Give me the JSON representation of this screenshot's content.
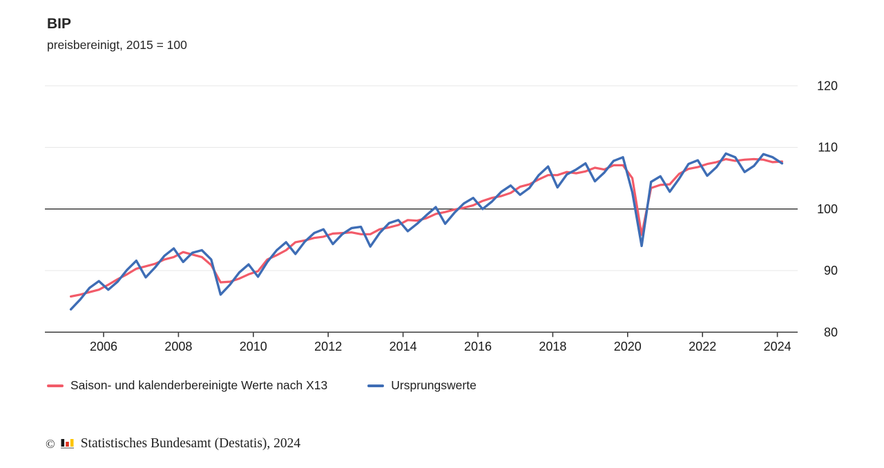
{
  "header": {
    "title": "BIP",
    "subtitle": "preisbereinigt, 2015 = 100"
  },
  "chart_data": {
    "type": "line",
    "title": "BIP",
    "subtitle": "preisbereinigt, 2015 = 100",
    "frequency": "quarterly",
    "baseline_value": 100,
    "yticks": [
      80,
      90,
      100,
      110,
      120
    ],
    "xticks": [
      2006,
      2008,
      2010,
      2012,
      2014,
      2016,
      2018,
      2020,
      2022,
      2024
    ],
    "ylim": [
      78.5,
      121.5
    ],
    "grid": "horizontal-only",
    "legend_position": "bottom-left",
    "style": {
      "grid_color": "#e7e7e7",
      "axis_color": "#3c3c3c",
      "label_color": "#1a1a1a"
    },
    "quarters": [
      "2005-Q1",
      "2005-Q2",
      "2005-Q3",
      "2005-Q4",
      "2006-Q1",
      "2006-Q2",
      "2006-Q3",
      "2006-Q4",
      "2007-Q1",
      "2007-Q2",
      "2007-Q3",
      "2007-Q4",
      "2008-Q1",
      "2008-Q2",
      "2008-Q3",
      "2008-Q4",
      "2009-Q1",
      "2009-Q2",
      "2009-Q3",
      "2009-Q4",
      "2010-Q1",
      "2010-Q2",
      "2010-Q3",
      "2010-Q4",
      "2011-Q1",
      "2011-Q2",
      "2011-Q3",
      "2011-Q4",
      "2012-Q1",
      "2012-Q2",
      "2012-Q3",
      "2012-Q4",
      "2013-Q1",
      "2013-Q2",
      "2013-Q3",
      "2013-Q4",
      "2014-Q1",
      "2014-Q2",
      "2014-Q3",
      "2014-Q4",
      "2015-Q1",
      "2015-Q2",
      "2015-Q3",
      "2015-Q4",
      "2016-Q1",
      "2016-Q2",
      "2016-Q3",
      "2016-Q4",
      "2017-Q1",
      "2017-Q2",
      "2017-Q3",
      "2017-Q4",
      "2018-Q1",
      "2018-Q2",
      "2018-Q3",
      "2018-Q4",
      "2019-Q1",
      "2019-Q2",
      "2019-Q3",
      "2019-Q4",
      "2020-Q1",
      "2020-Q2",
      "2020-Q3",
      "2020-Q4",
      "2021-Q1",
      "2021-Q2",
      "2021-Q3",
      "2021-Q4",
      "2022-Q1",
      "2022-Q2",
      "2022-Q3",
      "2022-Q4",
      "2023-Q1",
      "2023-Q2",
      "2023-Q3",
      "2023-Q4",
      "2024-Q1"
    ],
    "series": [
      {
        "name": "Saison- und kalenderbereinigte Werte nach X13",
        "color": "#f25b69",
        "values": [
          85.8,
          86.1,
          86.5,
          86.9,
          87.7,
          88.6,
          89.4,
          90.3,
          90.7,
          91.1,
          91.8,
          92.2,
          93.0,
          92.6,
          92.2,
          90.9,
          88.1,
          88.2,
          88.7,
          89.4,
          89.9,
          91.8,
          92.5,
          93.3,
          94.6,
          94.9,
          95.3,
          95.5,
          96.0,
          96.1,
          96.2,
          95.9,
          95.9,
          96.7,
          97.0,
          97.4,
          98.2,
          98.1,
          98.5,
          99.2,
          99.5,
          99.9,
          100.2,
          100.6,
          101.3,
          101.8,
          102.1,
          102.6,
          103.6,
          104.0,
          104.8,
          105.5,
          105.5,
          106.0,
          105.8,
          106.1,
          106.7,
          106.4,
          107.1,
          107.1,
          105.0,
          95.8,
          103.4,
          103.9,
          104.0,
          105.7,
          106.5,
          106.8,
          107.3,
          107.6,
          108.1,
          107.8,
          108.0,
          108.1,
          108.0,
          107.6,
          107.7
        ]
      },
      {
        "name": "Ursprungswerte",
        "color": "#3e6db5",
        "values": [
          83.7,
          85.3,
          87.2,
          88.3,
          86.9,
          88.2,
          90.1,
          91.6,
          88.9,
          90.5,
          92.4,
          93.6,
          91.4,
          92.9,
          93.3,
          91.8,
          86.1,
          87.7,
          89.7,
          91.0,
          89.0,
          91.4,
          93.3,
          94.6,
          92.7,
          94.7,
          96.1,
          96.7,
          94.3,
          95.9,
          96.9,
          97.1,
          93.9,
          96.1,
          97.7,
          98.2,
          96.4,
          97.6,
          99.0,
          100.3,
          97.6,
          99.4,
          100.9,
          101.8,
          100.0,
          101.2,
          102.8,
          103.8,
          102.3,
          103.4,
          105.5,
          106.9,
          103.5,
          105.6,
          106.4,
          107.4,
          104.5,
          105.9,
          107.8,
          108.4,
          102.7,
          94.0,
          104.4,
          105.3,
          102.8,
          104.9,
          107.3,
          107.9,
          105.4,
          106.8,
          109.0,
          108.4,
          106.0,
          107.0,
          108.9,
          108.4,
          107.4
        ]
      }
    ]
  },
  "legend": {
    "items": [
      {
        "label": "Saison- und kalenderbereinigte Werte nach X13",
        "color": "#f25b69"
      },
      {
        "label": "Ursprungswerte",
        "color": "#3e6db5"
      }
    ]
  },
  "footer": {
    "copyright_symbol": "©",
    "text": "Statistisches Bundesamt (Destatis), 2024",
    "logo_colors": {
      "bar1": "#1a1a1a",
      "bar2": "#e0321f",
      "bar3": "#fdc400",
      "base": "#9a9a9a"
    }
  }
}
